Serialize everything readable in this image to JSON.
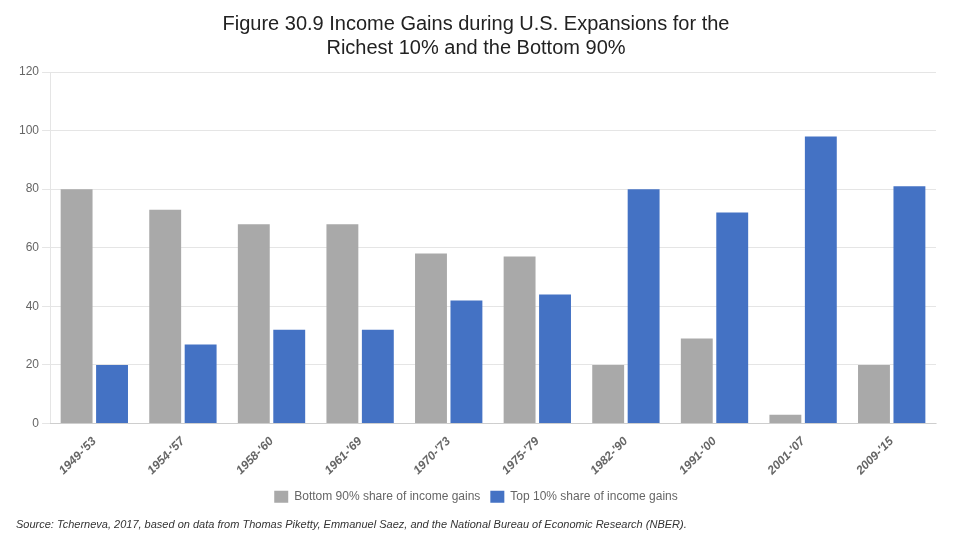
{
  "chart_data": {
    "type": "bar",
    "title": "Figure 30.9 Income Gains during U.S. Expansions for the\nRichest 10% and the Bottom 90%",
    "annotation": "Source: Tcherneva, 2017, based on data from Thomas Piketty, Emmanuel Saez, and the National Bureau of Economic Research (NBER).",
    "categories": [
      "1949-'53",
      "1954-'57",
      "1958-'60",
      "1961-'69",
      "1970-'73",
      "1975-'79",
      "1982-'90",
      "1991-'00",
      "2001-'07",
      "2009-'15"
    ],
    "series": [
      {
        "name": "Bottom 90% share of income gains",
        "color": "#A9A9A9",
        "values": [
          80,
          73,
          68,
          68,
          58,
          57,
          20,
          29,
          3,
          20
        ]
      },
      {
        "name": "Top 10% share of income gains",
        "color": "#4472C4",
        "values": [
          20,
          27,
          32,
          32,
          42,
          44,
          80,
          72,
          98,
          81
        ]
      }
    ],
    "ylim": [
      0,
      120
    ],
    "yticks": [
      0,
      20,
      40,
      60,
      80,
      100,
      120
    ],
    "grid": true,
    "legend": "bottom"
  }
}
